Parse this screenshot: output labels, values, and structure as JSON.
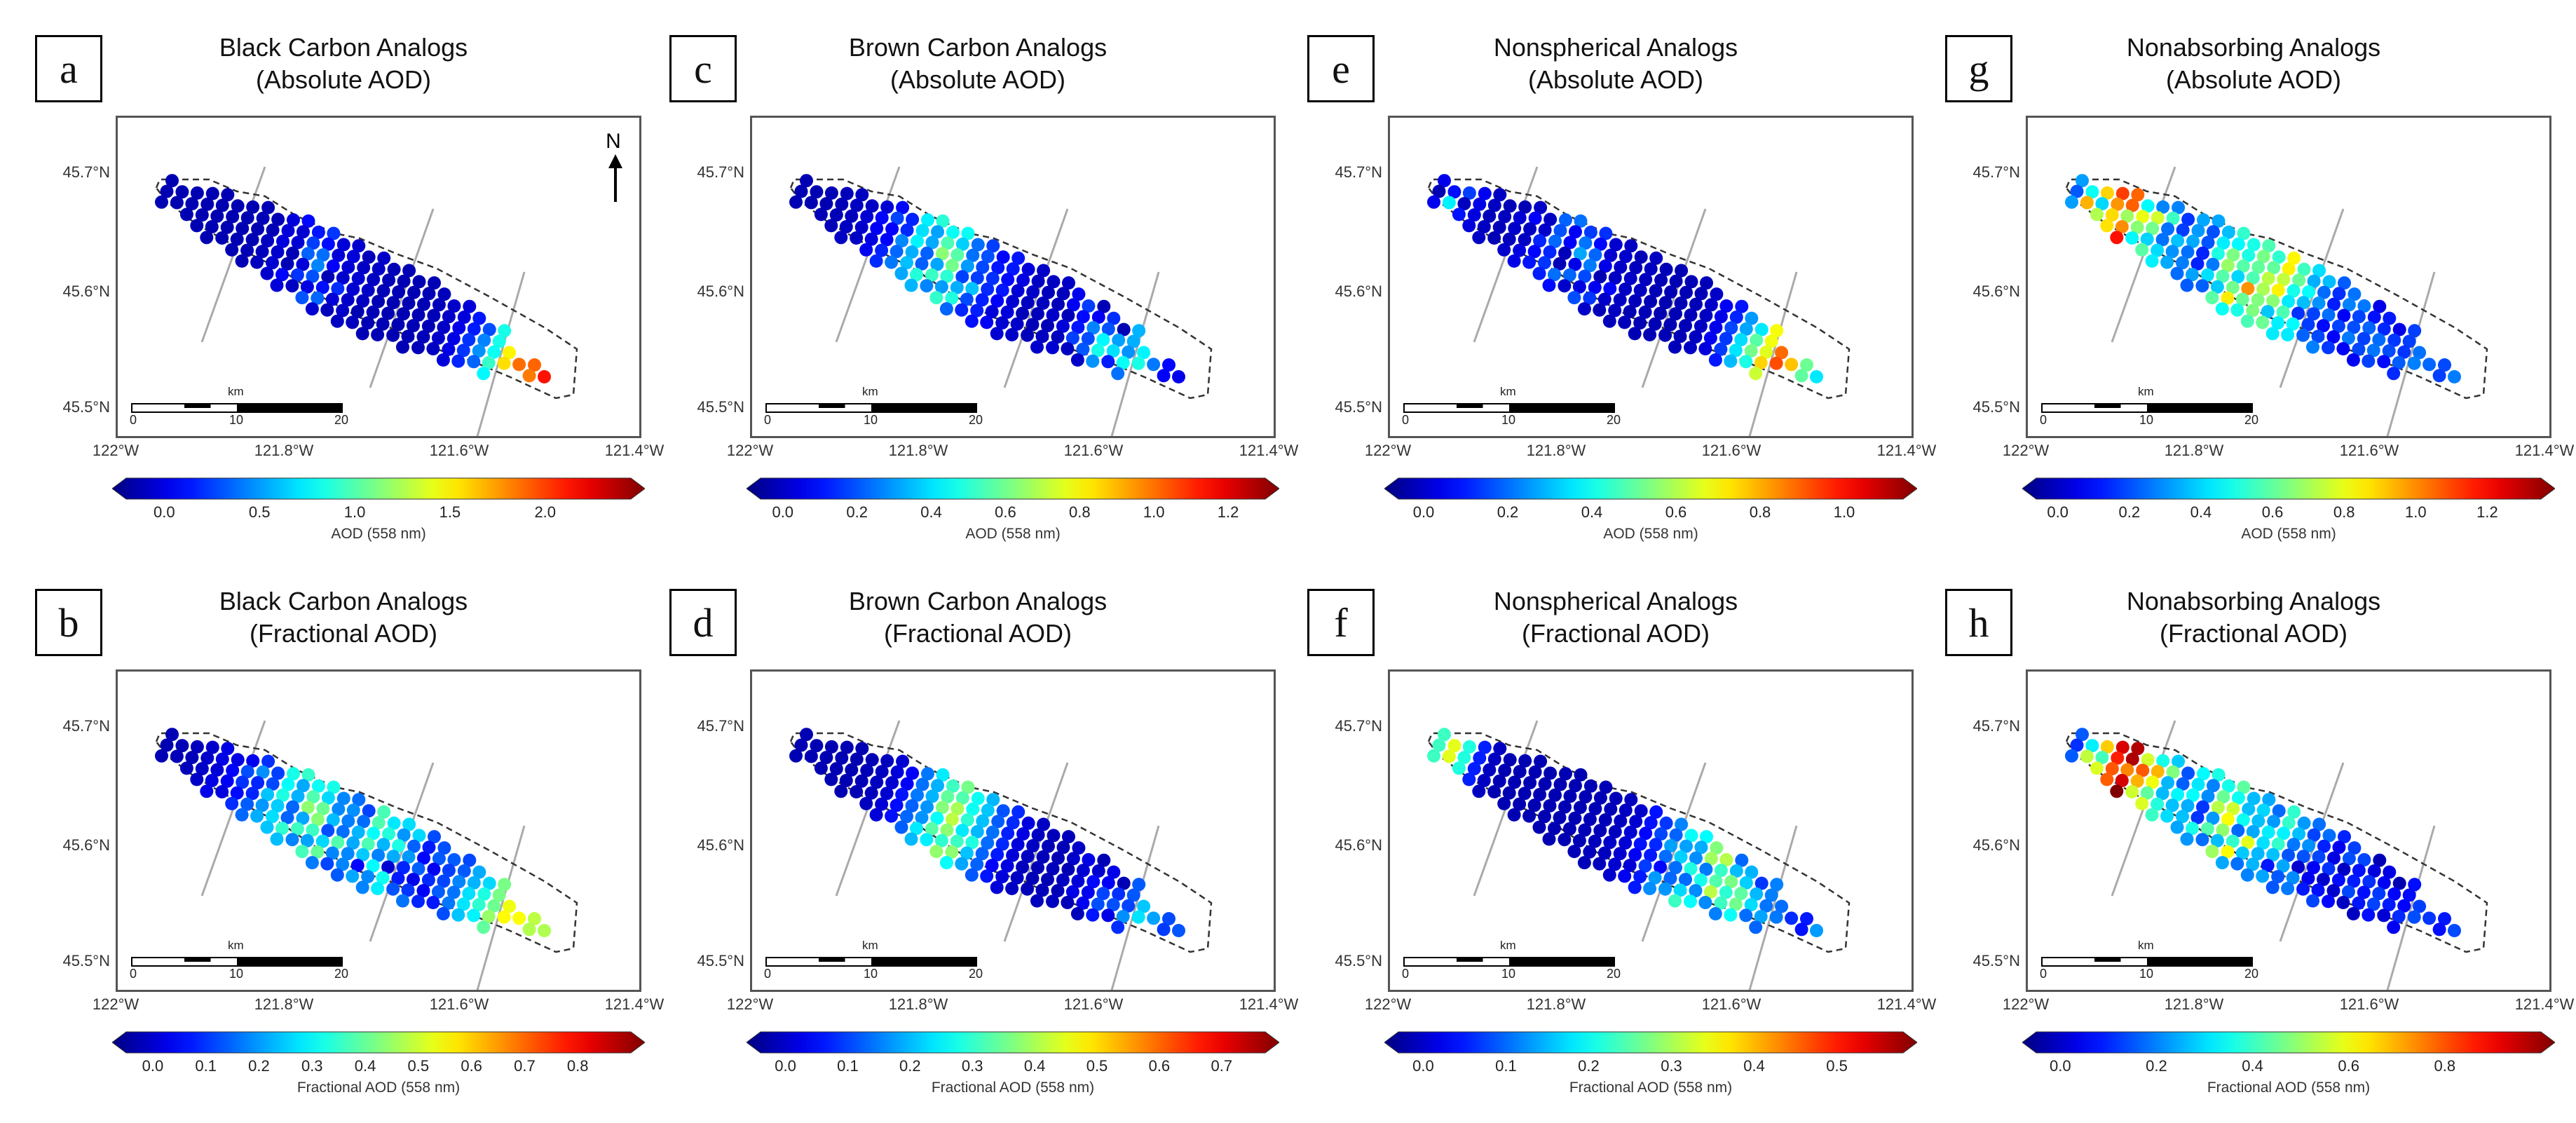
{
  "figure": {
    "axes": {
      "lat_ticks": [
        "45.7°N",
        "45.6°N",
        "45.5°N"
      ],
      "lon_ticks": [
        "122°W",
        "121.8°W",
        "121.6°W",
        "121.4°W"
      ]
    },
    "north_label": "N",
    "scale_bar": {
      "unit": "km",
      "ticks": [
        "0",
        "10",
        "20"
      ]
    },
    "panels": [
      {
        "letter": "a",
        "title_line1": "Black Carbon Analogs",
        "title_line2": "(Absolute AOD)",
        "show_north": true,
        "colorbar_label": "AOD (558 nm)",
        "colorbar_ticks": [
          "0.0",
          "0.5",
          "1.0",
          "1.5",
          "2.0"
        ],
        "colorbar_range": [
          -0.2,
          2.45
        ],
        "pattern": "bc_abs"
      },
      {
        "letter": "b",
        "title_line1": "Black Carbon Analogs",
        "title_line2": "(Fractional AOD)",
        "show_north": false,
        "colorbar_label": "Fractional AOD (558 nm)",
        "colorbar_ticks": [
          "0.0",
          "0.1",
          "0.2",
          "0.3",
          "0.4",
          "0.5",
          "0.6",
          "0.7",
          "0.8"
        ],
        "colorbar_range": [
          -0.05,
          0.9
        ],
        "pattern": "bc_frac"
      },
      {
        "letter": "c",
        "title_line1": "Brown Carbon Analogs",
        "title_line2": "(Absolute AOD)",
        "show_north": false,
        "colorbar_label": "AOD (558 nm)",
        "colorbar_ticks": [
          "0.0",
          "0.2",
          "0.4",
          "0.6",
          "0.8",
          "1.0",
          "1.2"
        ],
        "colorbar_range": [
          -0.06,
          1.3
        ],
        "pattern": "brc_abs"
      },
      {
        "letter": "d",
        "title_line1": "Brown Carbon Analogs",
        "title_line2": "(Fractional AOD)",
        "show_north": false,
        "colorbar_label": "Fractional AOD (558 nm)",
        "colorbar_ticks": [
          "0.0",
          "0.1",
          "0.2",
          "0.3",
          "0.4",
          "0.5",
          "0.6",
          "0.7"
        ],
        "colorbar_range": [
          -0.04,
          0.77
        ],
        "pattern": "brc_frac"
      },
      {
        "letter": "e",
        "title_line1": "Nonspherical Analogs",
        "title_line2": "(Absolute AOD)",
        "show_north": false,
        "colorbar_label": "AOD (558 nm)",
        "colorbar_ticks": [
          "0.0",
          "0.2",
          "0.4",
          "0.6",
          "0.8",
          "1.0"
        ],
        "colorbar_range": [
          -0.06,
          1.14
        ],
        "pattern": "ns_abs"
      },
      {
        "letter": "f",
        "title_line1": "Nonspherical Analogs",
        "title_line2": "(Fractional AOD)",
        "show_north": false,
        "colorbar_label": "Fractional AOD (558 nm)",
        "colorbar_ticks": [
          "0.0",
          "0.1",
          "0.2",
          "0.3",
          "0.4",
          "0.5"
        ],
        "colorbar_range": [
          -0.03,
          0.58
        ],
        "pattern": "ns_frac"
      },
      {
        "letter": "g",
        "title_line1": "Nonabsorbing Analogs",
        "title_line2": "(Absolute AOD)",
        "show_north": false,
        "colorbar_label": "AOD (558 nm)",
        "colorbar_ticks": [
          "0.0",
          "0.2",
          "0.4",
          "0.6",
          "0.8",
          "1.0",
          "1.2"
        ],
        "colorbar_range": [
          -0.06,
          1.35
        ],
        "pattern": "na_abs"
      },
      {
        "letter": "h",
        "title_line1": "Nonabsorbing Analogs",
        "title_line2": "(Fractional AOD)",
        "show_north": false,
        "colorbar_label": "Fractional AOD (558 nm)",
        "colorbar_ticks": [
          "0.0",
          "0.2",
          "0.4",
          "0.6",
          "0.8"
        ],
        "colorbar_range": [
          -0.05,
          1.0
        ],
        "pattern": "na_frac"
      }
    ]
  }
}
